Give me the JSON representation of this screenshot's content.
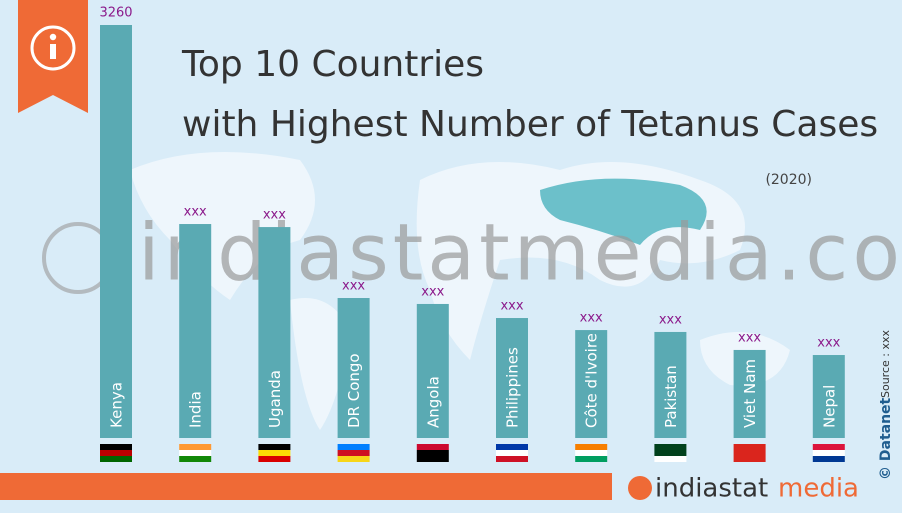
{
  "chart_data": {
    "type": "bar",
    "title": "Top 10 Countries",
    "subtitle": "with Highest Number of Tetanus Cases",
    "period": "(2020)",
    "categories": [
      "Kenya",
      "India",
      "Uganda",
      "DR Congo",
      "Angola",
      "Philippines",
      "Côte d'Ivoire",
      "Pakistan",
      "Viet Nam",
      "Nepal"
    ],
    "values": [
      3260,
      1689,
      1665,
      1105,
      1058,
      947,
      852,
      837,
      695,
      655
    ],
    "value_labels": [
      "3260",
      "xxx",
      "xxx",
      "xxx",
      "xxx",
      "xxx",
      "xxx",
      "xxx",
      "xxx",
      "xxx"
    ],
    "color": "#5aaab3",
    "watermark": "indiastatmedia.com",
    "copyright": "© Datanet",
    "source": "Source : xxx",
    "brand": {
      "prefix": "indiastat",
      "suffix": "media"
    }
  }
}
